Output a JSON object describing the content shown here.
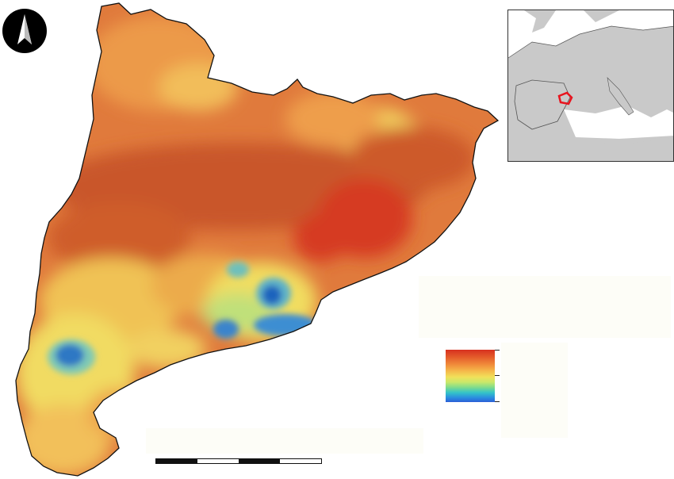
{
  "map": {
    "region": "Catalonia",
    "inset_highlight_color": "#e8141e",
    "colors": {
      "sea": "#ffffff",
      "land_inset": "#c8c8c8",
      "high": "#d7301f",
      "mid_high": "#e8793b",
      "mid": "#f2b457",
      "mid_low": "#f1df61",
      "low": "#8fd2b6",
      "lowest": "#1f6fc4"
    },
    "icons": [
      "north-arrow-icon"
    ]
  },
  "legend": {
    "ramp_colors": [
      "#d7301f",
      "#f5b64a",
      "#f1e05a",
      "#34c3c8",
      "#2c5fd6"
    ]
  },
  "scale_bar": {
    "segments": 4
  }
}
